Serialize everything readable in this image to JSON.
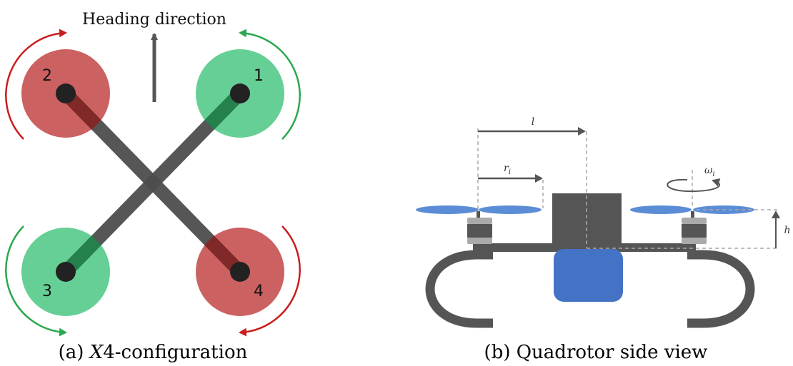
{
  "panel_a": {
    "heading_label": "Heading direction",
    "rotor_labels": [
      "1",
      "2",
      "3",
      "4"
    ],
    "caption_prefix": "(a) ",
    "caption_italic": "X",
    "caption_suffix": "4-configuration",
    "colors": {
      "ccw_rotor": "#66cf96",
      "cw_rotor": "#cc6161",
      "ccw_arrow": "#2aa84f",
      "cw_arrow": "#c81e1e",
      "frame": "#4d4d4d"
    }
  },
  "panel_b": {
    "label_l": "l",
    "label_r_base": "r",
    "label_r_sub": "i",
    "label_omega_base": "ω",
    "label_omega_sub": "i",
    "label_h": "h",
    "caption": "(b) Quadrotor side view",
    "colors": {
      "propeller": "#5b8dd6",
      "battery": "#4472c4",
      "body": "#555555"
    }
  }
}
